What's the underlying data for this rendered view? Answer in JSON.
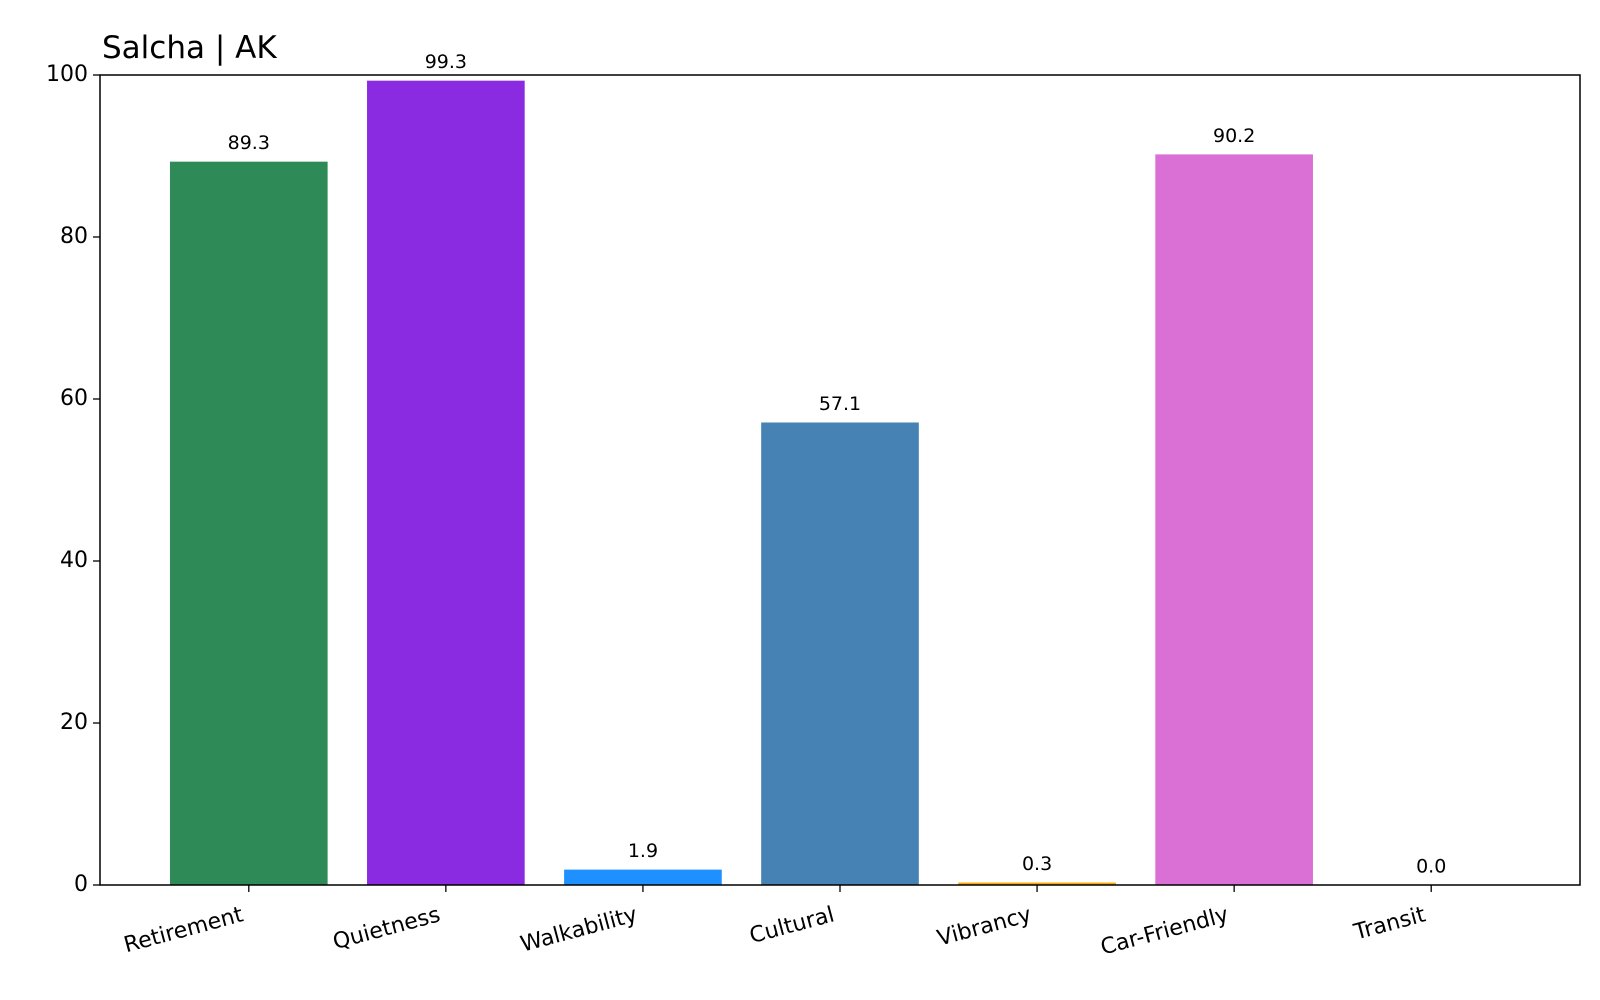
{
  "chart_data": {
    "type": "bar",
    "title": "Salcha | AK",
    "categories": [
      "Retirement",
      "Quietness",
      "Walkability",
      "Cultural",
      "Vibrancy",
      "Car-Friendly",
      "Transit"
    ],
    "values": [
      89.3,
      99.3,
      1.9,
      57.1,
      0.3,
      90.2,
      0
    ],
    "value_labels": [
      "89.3",
      "99.3",
      "1.9",
      "57.1",
      "0.3",
      "90.2",
      "0.0"
    ],
    "colors": [
      "#2e8b57",
      "#8a2be2",
      "#1e90ff",
      "#4682b4",
      "#ffa500",
      "#da70d6",
      "#808080"
    ],
    "ylim": [
      0,
      100
    ],
    "yticks": [
      0,
      20,
      40,
      60,
      80,
      100
    ],
    "grid": false
  }
}
